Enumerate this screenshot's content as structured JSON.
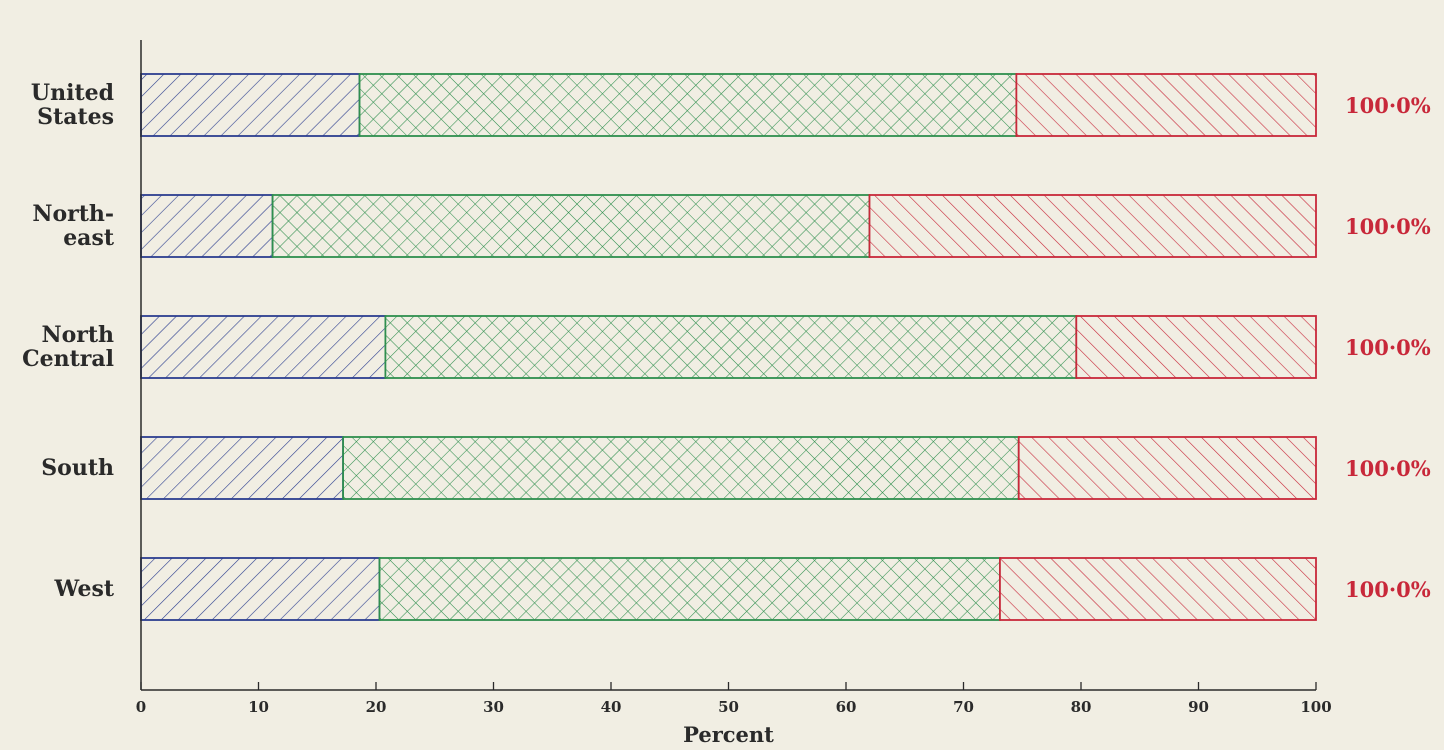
{
  "chart_data": {
    "type": "bar",
    "orientation": "horizontal",
    "stacked": true,
    "categories": [
      [
        "United",
        "States"
      ],
      [
        "North-",
        "east"
      ],
      [
        "North",
        "Central"
      ],
      [
        "South"
      ],
      [
        "West"
      ]
    ],
    "series": [
      {
        "values": [
          18.6,
          11.2,
          20.8,
          17.2,
          20.3
        ],
        "color": "#2c3e8f"
      },
      {
        "values": [
          55.9,
          50.8,
          58.8,
          57.5,
          52.8
        ],
        "color": "#2f8f4e"
      },
      {
        "values": [
          25.5,
          38.0,
          20.4,
          25.3,
          26.9
        ],
        "color": "#c8283a"
      }
    ],
    "totals": [
      "100·0%",
      "100·0%",
      "100·0%",
      "100·0%",
      "100·0%"
    ],
    "totals_color": "#c8283a",
    "xlabel": "Percent",
    "xlim": [
      0,
      100
    ],
    "xticks": [
      0,
      10,
      20,
      30,
      40,
      50,
      60,
      70,
      80,
      90,
      100
    ],
    "grid": false
  }
}
